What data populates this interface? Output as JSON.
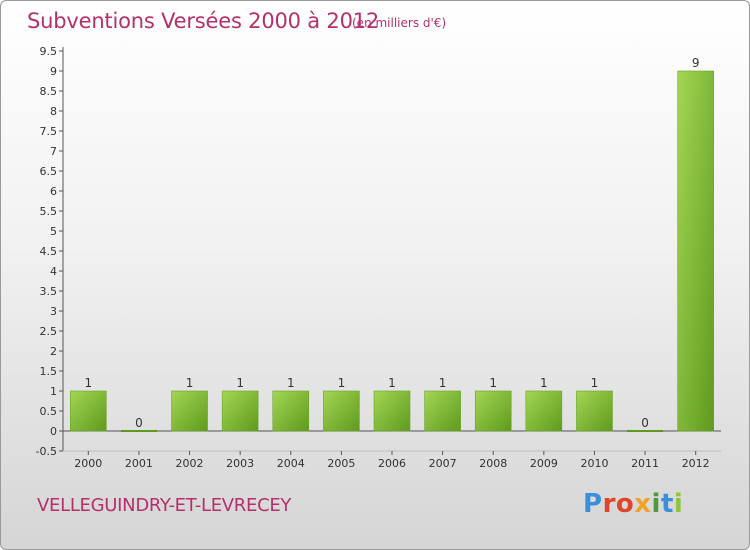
{
  "header": {
    "title": "Subventions Versées 2000 à 2012",
    "subtitle": "(en milliers d'€)"
  },
  "footer": {
    "commune": "VELLEGUINDRY-ET-LEVRECEY",
    "logo": "Proxiti"
  },
  "chart_data": {
    "type": "bar",
    "title": "Subventions Versées 2000 à 2012",
    "subtitle": "(en milliers d'€)",
    "categories": [
      "2000",
      "2001",
      "2002",
      "2003",
      "2004",
      "2005",
      "2006",
      "2007",
      "2008",
      "2009",
      "2010",
      "2011",
      "2012"
    ],
    "values": [
      1,
      0,
      1,
      1,
      1,
      1,
      1,
      1,
      1,
      1,
      1,
      0,
      9
    ],
    "value_labels": [
      "1",
      "0",
      "1",
      "1",
      "1",
      "1",
      "1",
      "1",
      "1",
      "1",
      "1",
      "0",
      "9"
    ],
    "y_ticks": [
      "-0.5",
      "0",
      "0.5",
      "1",
      "1.5",
      "2",
      "2.5",
      "3",
      "3.5",
      "4",
      "4.5",
      "5",
      "5.5",
      "6",
      "6.5",
      "7",
      "7.5",
      "8",
      "8.5",
      "9",
      "9.5"
    ],
    "ylim": [
      -0.5,
      9.5
    ],
    "xlabel": "",
    "ylabel": "",
    "grid": false,
    "colors": {
      "bar_light": "#9ccf4a",
      "bar_dark": "#5f9a1e",
      "axis": "#555555"
    }
  }
}
